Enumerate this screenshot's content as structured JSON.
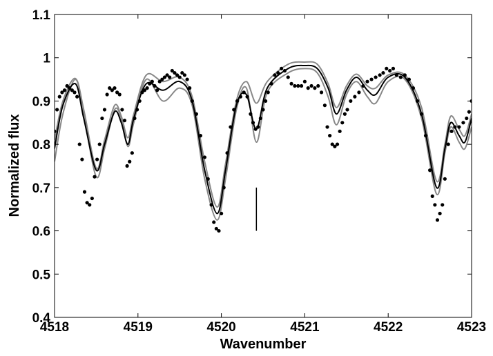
{
  "chart_data": {
    "type": "line",
    "title": "",
    "xlabel": "Wavenumber",
    "ylabel": "Normalized flux",
    "xlim": [
      4518,
      4523
    ],
    "ylim": [
      0.4,
      1.1
    ],
    "x_ticks": [
      4518,
      4519,
      4520,
      4521,
      4522,
      4523
    ],
    "y_ticks": [
      0.4,
      0.5,
      0.6,
      0.7,
      0.8,
      0.9,
      1,
      1.1
    ],
    "grid": false,
    "legend": "none",
    "marker_line": {
      "x": 4520.42,
      "y": [
        0.6,
        0.7
      ]
    },
    "series": [
      {
        "style": "solid",
        "color": "#000000",
        "points": [
          [
            4518,
            0.79
          ],
          [
            4518.1,
            0.89
          ],
          [
            4518.25,
            0.94
          ],
          [
            4518.35,
            0.86
          ],
          [
            4518.5,
            0.74
          ],
          [
            4518.6,
            0.8
          ],
          [
            4518.72,
            0.875
          ],
          [
            4518.8,
            0.85
          ],
          [
            4518.88,
            0.8
          ],
          [
            4518.95,
            0.86
          ],
          [
            4519.1,
            0.94
          ],
          [
            4519.3,
            0.925
          ],
          [
            4519.5,
            0.945
          ],
          [
            4519.65,
            0.9
          ],
          [
            4519.8,
            0.74
          ],
          [
            4519.95,
            0.64
          ],
          [
            4520.05,
            0.74
          ],
          [
            4520.18,
            0.89
          ],
          [
            4520.3,
            0.915
          ],
          [
            4520.42,
            0.835
          ],
          [
            4520.55,
            0.93
          ],
          [
            4520.8,
            0.975
          ],
          [
            4521.0,
            0.982
          ],
          [
            4521.15,
            0.975
          ],
          [
            4521.28,
            0.93
          ],
          [
            4521.38,
            0.87
          ],
          [
            4521.5,
            0.925
          ],
          [
            4521.62,
            0.955
          ],
          [
            4521.75,
            0.925
          ],
          [
            4521.85,
            0.915
          ],
          [
            4522.0,
            0.955
          ],
          [
            4522.2,
            0.955
          ],
          [
            4522.4,
            0.87
          ],
          [
            4522.58,
            0.7
          ],
          [
            4522.68,
            0.79
          ],
          [
            4522.75,
            0.85
          ],
          [
            4522.85,
            0.82
          ],
          [
            4522.92,
            0.805
          ],
          [
            4523,
            0.86
          ]
        ]
      },
      {
        "style": "solid",
        "color": "#888888",
        "points": [
          [
            4518,
            0.76
          ],
          [
            4518.1,
            0.87
          ],
          [
            4518.25,
            0.95
          ],
          [
            4518.35,
            0.87
          ],
          [
            4518.5,
            0.725
          ],
          [
            4518.6,
            0.79
          ],
          [
            4518.72,
            0.88
          ],
          [
            4518.8,
            0.86
          ],
          [
            4518.88,
            0.795
          ],
          [
            4518.95,
            0.85
          ],
          [
            4519.1,
            0.95
          ],
          [
            4519.3,
            0.9
          ],
          [
            4519.5,
            0.93
          ],
          [
            4519.65,
            0.89
          ],
          [
            4519.8,
            0.72
          ],
          [
            4519.95,
            0.625
          ],
          [
            4520.05,
            0.72
          ],
          [
            4520.18,
            0.88
          ],
          [
            4520.3,
            0.93
          ],
          [
            4520.42,
            0.805
          ],
          [
            4520.55,
            0.92
          ],
          [
            4520.8,
            0.965
          ],
          [
            4521.0,
            0.975
          ],
          [
            4521.15,
            0.965
          ],
          [
            4521.28,
            0.91
          ],
          [
            4521.38,
            0.845
          ],
          [
            4521.5,
            0.915
          ],
          [
            4521.62,
            0.945
          ],
          [
            4521.75,
            0.91
          ],
          [
            4521.85,
            0.895
          ],
          [
            4522.0,
            0.945
          ],
          [
            4522.2,
            0.95
          ],
          [
            4522.4,
            0.86
          ],
          [
            4522.58,
            0.685
          ],
          [
            4522.68,
            0.78
          ],
          [
            4522.75,
            0.84
          ],
          [
            4522.85,
            0.805
          ],
          [
            4522.92,
            0.79
          ],
          [
            4523,
            0.84
          ]
        ]
      },
      {
        "style": "solid",
        "color": "#888888",
        "points": [
          [
            4518,
            0.81
          ],
          [
            4518.1,
            0.9
          ],
          [
            4518.25,
            0.952
          ],
          [
            4518.35,
            0.88
          ],
          [
            4518.5,
            0.745
          ],
          [
            4518.6,
            0.81
          ],
          [
            4518.72,
            0.89
          ],
          [
            4518.8,
            0.865
          ],
          [
            4518.88,
            0.815
          ],
          [
            4518.95,
            0.87
          ],
          [
            4519.1,
            0.96
          ],
          [
            4519.3,
            0.945
          ],
          [
            4519.5,
            0.955
          ],
          [
            4519.65,
            0.91
          ],
          [
            4519.8,
            0.76
          ],
          [
            4519.95,
            0.655
          ],
          [
            4520.05,
            0.755
          ],
          [
            4520.18,
            0.9
          ],
          [
            4520.3,
            0.945
          ],
          [
            4520.42,
            0.895
          ],
          [
            4520.55,
            0.945
          ],
          [
            4520.8,
            0.985
          ],
          [
            4521.0,
            0.99
          ],
          [
            4521.15,
            0.985
          ],
          [
            4521.28,
            0.94
          ],
          [
            4521.38,
            0.885
          ],
          [
            4521.5,
            0.935
          ],
          [
            4521.62,
            0.962
          ],
          [
            4521.75,
            0.935
          ],
          [
            4521.85,
            0.93
          ],
          [
            4522.0,
            0.96
          ],
          [
            4522.2,
            0.96
          ],
          [
            4522.4,
            0.885
          ],
          [
            4522.58,
            0.715
          ],
          [
            4522.68,
            0.8
          ],
          [
            4522.75,
            0.865
          ],
          [
            4522.85,
            0.835
          ],
          [
            4522.92,
            0.82
          ],
          [
            4523,
            0.87
          ]
        ]
      },
      {
        "style": "markers",
        "color": "#000000",
        "points": [
          [
            4518,
            0.83
          ],
          [
            4518.03,
            0.88
          ],
          [
            4518.06,
            0.91
          ],
          [
            4518.09,
            0.92
          ],
          [
            4518.12,
            0.925
          ],
          [
            4518.15,
            0.935
          ],
          [
            4518.18,
            0.93
          ],
          [
            4518.21,
            0.925
          ],
          [
            4518.24,
            0.92
          ],
          [
            4518.27,
            0.91
          ],
          [
            4518.3,
            0.8
          ],
          [
            4518.33,
            0.765
          ],
          [
            4518.36,
            0.69
          ],
          [
            4518.39,
            0.665
          ],
          [
            4518.42,
            0.66
          ],
          [
            4518.45,
            0.675
          ],
          [
            4518.48,
            0.725
          ],
          [
            4518.51,
            0.765
          ],
          [
            4518.54,
            0.8
          ],
          [
            4518.57,
            0.86
          ],
          [
            4518.6,
            0.88
          ],
          [
            4518.63,
            0.915
          ],
          [
            4518.66,
            0.93
          ],
          [
            4518.69,
            0.925
          ],
          [
            4518.72,
            0.93
          ],
          [
            4518.75,
            0.92
          ],
          [
            4518.78,
            0.915
          ],
          [
            4518.81,
            0.88
          ],
          [
            4518.84,
            0.855
          ],
          [
            4518.87,
            0.75
          ],
          [
            4518.9,
            0.76
          ],
          [
            4518.93,
            0.78
          ],
          [
            4518.96,
            0.86
          ],
          [
            4518.99,
            0.88
          ],
          [
            4519.02,
            0.9
          ],
          [
            4519.05,
            0.92
          ],
          [
            4519.08,
            0.925
          ],
          [
            4519.11,
            0.93
          ],
          [
            4519.14,
            0.94
          ],
          [
            4519.17,
            0.945
          ],
          [
            4519.2,
            0.935
          ],
          [
            4519.23,
            0.925
          ],
          [
            4519.26,
            0.945
          ],
          [
            4519.29,
            0.95
          ],
          [
            4519.32,
            0.955
          ],
          [
            4519.35,
            0.96
          ],
          [
            4519.38,
            0.955
          ],
          [
            4519.41,
            0.97
          ],
          [
            4519.44,
            0.965
          ],
          [
            4519.47,
            0.96
          ],
          [
            4519.5,
            0.955
          ],
          [
            4519.53,
            0.965
          ],
          [
            4519.56,
            0.96
          ],
          [
            4519.59,
            0.95
          ],
          [
            4519.62,
            0.93
          ],
          [
            4519.65,
            0.9
          ],
          [
            4519.7,
            0.87
          ],
          [
            4519.75,
            0.82
          ],
          [
            4519.8,
            0.77
          ],
          [
            4519.84,
            0.72
          ],
          [
            4519.88,
            0.66
          ],
          [
            4519.91,
            0.62
          ],
          [
            4519.94,
            0.605
          ],
          [
            4519.97,
            0.6
          ],
          [
            4520.0,
            0.64
          ],
          [
            4520.03,
            0.7
          ],
          [
            4520.07,
            0.78
          ],
          [
            4520.11,
            0.84
          ],
          [
            4520.15,
            0.88
          ],
          [
            4520.19,
            0.9
          ],
          [
            4520.23,
            0.91
          ],
          [
            4520.27,
            0.92
          ],
          [
            4520.31,
            0.91
          ],
          [
            4520.35,
            0.87
          ],
          [
            4520.38,
            0.85
          ],
          [
            4520.41,
            0.835
          ],
          [
            4520.44,
            0.84
          ],
          [
            4520.47,
            0.86
          ],
          [
            4520.5,
            0.88
          ],
          [
            4520.53,
            0.9
          ],
          [
            4520.56,
            0.92
          ],
          [
            4520.6,
            0.94
          ],
          [
            4520.64,
            0.96
          ],
          [
            4520.68,
            0.965
          ],
          [
            4520.72,
            0.975
          ],
          [
            4520.76,
            0.97
          ],
          [
            4520.8,
            0.955
          ],
          [
            4520.84,
            0.94
          ],
          [
            4520.88,
            0.935
          ],
          [
            4520.92,
            0.935
          ],
          [
            4520.96,
            0.935
          ],
          [
            4521.0,
            0.945
          ],
          [
            4521.04,
            0.93
          ],
          [
            4521.08,
            0.935
          ],
          [
            4521.12,
            0.93
          ],
          [
            4521.16,
            0.935
          ],
          [
            4521.2,
            0.92
          ],
          [
            4521.24,
            0.89
          ],
          [
            4521.27,
            0.84
          ],
          [
            4521.3,
            0.82
          ],
          [
            4521.33,
            0.8
          ],
          [
            4521.36,
            0.795
          ],
          [
            4521.39,
            0.8
          ],
          [
            4521.42,
            0.83
          ],
          [
            4521.45,
            0.85
          ],
          [
            4521.48,
            0.87
          ],
          [
            4521.51,
            0.88
          ],
          [
            4521.55,
            0.9
          ],
          [
            4521.6,
            0.91
          ],
          [
            4521.65,
            0.92
          ],
          [
            4521.7,
            0.935
          ],
          [
            4521.75,
            0.945
          ],
          [
            4521.8,
            0.95
          ],
          [
            4521.85,
            0.955
          ],
          [
            4521.9,
            0.96
          ],
          [
            4521.94,
            0.965
          ],
          [
            4521.98,
            0.975
          ],
          [
            4522.02,
            0.97
          ],
          [
            4522.06,
            0.975
          ],
          [
            4522.1,
            0.96
          ],
          [
            4522.15,
            0.955
          ],
          [
            4522.2,
            0.96
          ],
          [
            4522.25,
            0.95
          ],
          [
            4522.3,
            0.93
          ],
          [
            4522.35,
            0.9
          ],
          [
            4522.4,
            0.87
          ],
          [
            4522.45,
            0.82
          ],
          [
            4522.5,
            0.74
          ],
          [
            4522.53,
            0.68
          ],
          [
            4522.56,
            0.66
          ],
          [
            4522.59,
            0.625
          ],
          [
            4522.62,
            0.64
          ],
          [
            4522.65,
            0.66
          ],
          [
            4522.68,
            0.72
          ],
          [
            4522.72,
            0.8
          ],
          [
            4522.76,
            0.83
          ],
          [
            4522.8,
            0.84
          ],
          [
            4522.85,
            0.84
          ],
          [
            4522.9,
            0.85
          ],
          [
            4522.94,
            0.86
          ],
          [
            4522.97,
            0.875
          ],
          [
            4523.0,
            0.9
          ]
        ]
      }
    ]
  }
}
